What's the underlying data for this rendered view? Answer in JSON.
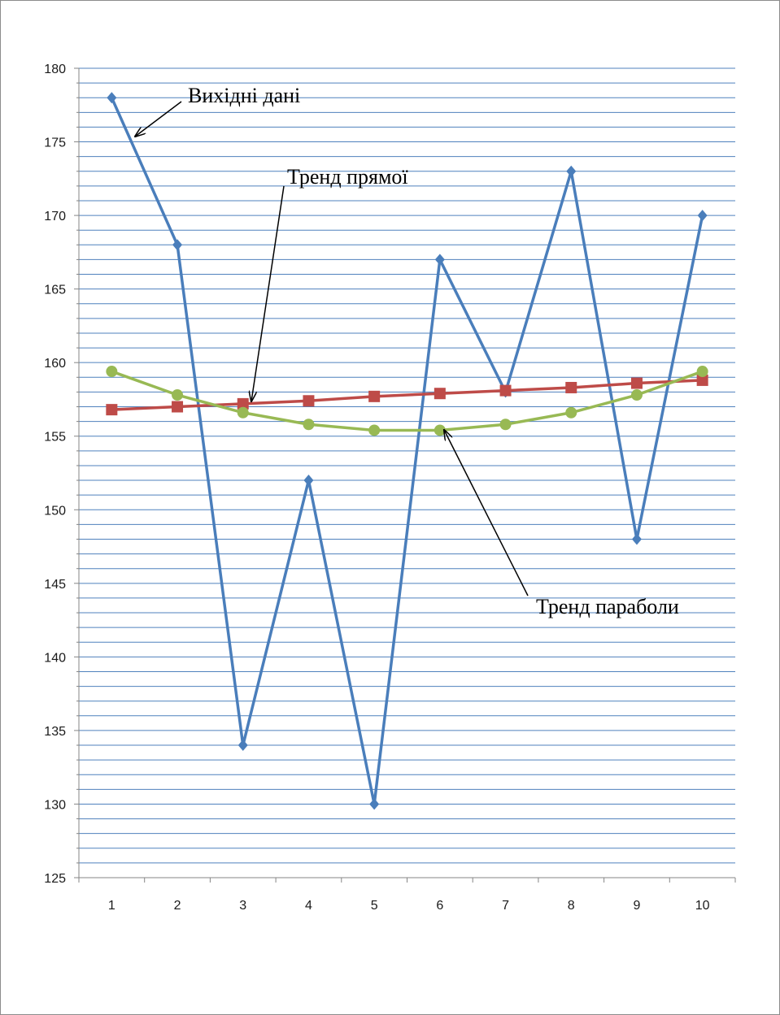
{
  "chart_data": {
    "type": "line",
    "x": [
      1,
      2,
      3,
      4,
      5,
      6,
      7,
      8,
      9,
      10
    ],
    "ylim": [
      125,
      180
    ],
    "y_ticks": [
      125,
      130,
      135,
      140,
      145,
      150,
      155,
      160,
      165,
      170,
      175,
      180
    ],
    "y_minor_step": 1,
    "grid": true,
    "legend": "none",
    "series": [
      {
        "values": [
          178,
          168,
          134,
          152,
          130,
          167,
          158,
          173,
          148,
          170
        ],
        "color": "#4a7ebb",
        "marker": "diamond"
      },
      {
        "values": [
          156.8,
          157.0,
          157.2,
          157.4,
          157.7,
          157.9,
          158.1,
          158.3,
          158.6,
          158.8
        ],
        "color": "#be4b48",
        "marker": "square"
      },
      {
        "values": [
          159.4,
          157.8,
          156.6,
          155.8,
          155.4,
          155.4,
          155.8,
          156.6,
          157.8,
          159.4
        ],
        "color": "#98b954",
        "marker": "circle"
      }
    ],
    "annotations": [
      {
        "text": "Вихідні дані",
        "series": 0,
        "x": 1
      },
      {
        "text": "Тренд прямої",
        "series": 1,
        "x": 3
      },
      {
        "text": "Тренд параболи",
        "series": 2,
        "x": 6
      }
    ],
    "colors": {
      "grid": "#4f81bd",
      "axis": "#868686"
    }
  }
}
